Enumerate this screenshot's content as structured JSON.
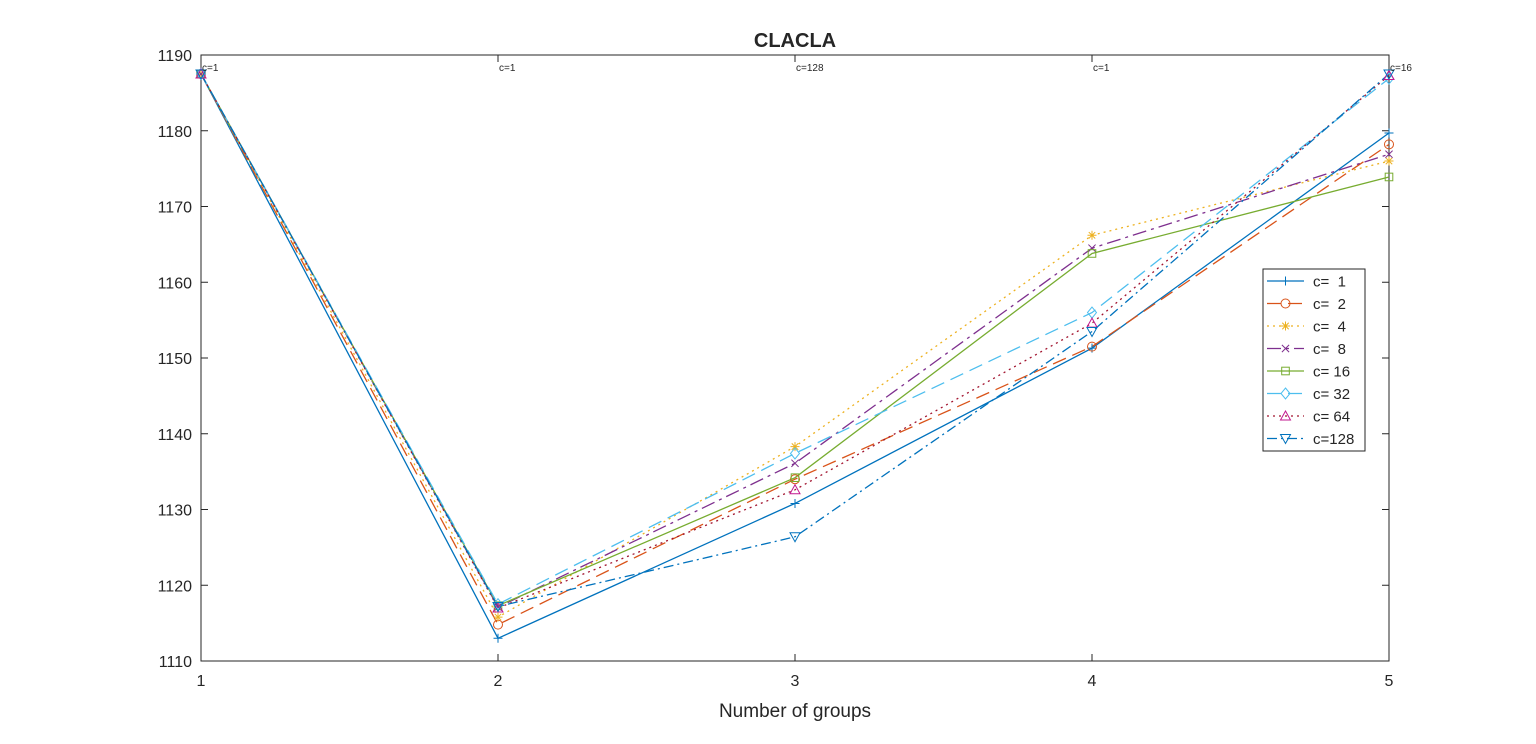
{
  "chart_data": {
    "type": "line",
    "title": "CLACLA",
    "xlabel": "Number of groups",
    "ylabel": "",
    "x": [
      1,
      2,
      3,
      4,
      5
    ],
    "xlim": [
      1,
      5
    ],
    "ylim": [
      1110,
      1190
    ],
    "xticks": [
      "1",
      "2",
      "3",
      "4",
      "5"
    ],
    "yticks": [
      "1110",
      "1120",
      "1130",
      "1140",
      "1150",
      "1160",
      "1170",
      "1180",
      "1190"
    ],
    "grid": false,
    "legend_position": "right",
    "annotations": [
      {
        "x": 1,
        "text": "c=1"
      },
      {
        "x": 2,
        "text": "c=1"
      },
      {
        "x": 3,
        "text": "c=128"
      },
      {
        "x": 4,
        "text": "c=1"
      },
      {
        "x": 5,
        "text": "c=16"
      }
    ],
    "series": [
      {
        "name": "c=  1",
        "values": [
          1187.5,
          1113.0,
          1130.8,
          1151.3,
          1179.7
        ],
        "color": "#0072BD",
        "dash": "",
        "marker": "plus"
      },
      {
        "name": "c=  2",
        "values": [
          1187.5,
          1114.8,
          1134.0,
          1151.5,
          1178.2
        ],
        "color": "#D95319",
        "dash": "14 7",
        "marker": "circle"
      },
      {
        "name": "c=  4",
        "values": [
          1187.5,
          1115.8,
          1138.3,
          1166.2,
          1176.0
        ],
        "color": "#EDB120",
        "dash": "2 4",
        "marker": "asterisk"
      },
      {
        "name": "c=  8",
        "values": [
          1187.5,
          1117.1,
          1136.1,
          1164.5,
          1176.9
        ],
        "color": "#7E2F8E",
        "dash": "14 5 3 5",
        "marker": "cross"
      },
      {
        "name": "c= 16",
        "values": [
          1187.5,
          1117.3,
          1134.2,
          1163.8,
          1173.9
        ],
        "color": "#77AC30",
        "dash": "",
        "marker": "square"
      },
      {
        "name": "c= 32",
        "values": [
          1187.5,
          1117.5,
          1137.4,
          1156.0,
          1186.9
        ],
        "color": "#4DBEEE",
        "dash": "14 7",
        "marker": "diamond"
      },
      {
        "name": "c= 64",
        "values": [
          1187.5,
          1117.0,
          1132.6,
          1154.6,
          1187.3
        ],
        "color": "#A2142F",
        "dash": "2 4",
        "marker": "triangle-up",
        "markerColor": "#C2188F"
      },
      {
        "name": "c=128",
        "values": [
          1187.5,
          1117.2,
          1126.4,
          1153.5,
          1187.5
        ],
        "color": "#0072BD",
        "dash": "10 4 2 4",
        "marker": "triangle-down"
      }
    ]
  }
}
